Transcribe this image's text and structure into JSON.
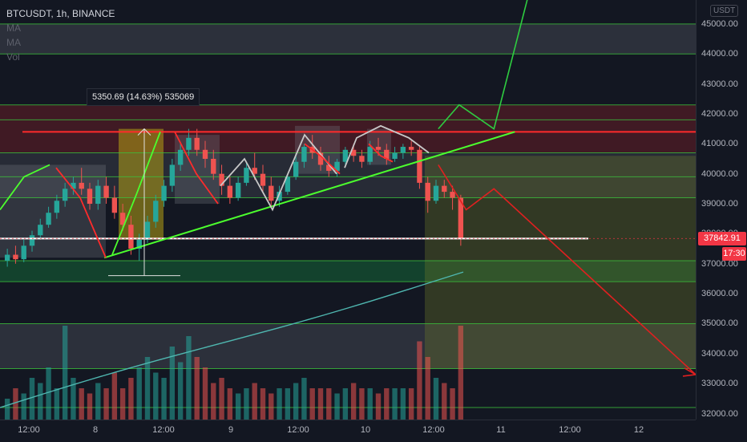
{
  "legend": {
    "symbol": "BTCUSDT, 1h, BINANCE",
    "indicators": [
      "MA",
      "MA",
      "Vol"
    ]
  },
  "price_axis": {
    "currency": "USDT",
    "labels": [
      "45000.00",
      "44000.00",
      "43000.00",
      "42000.00",
      "41000.00",
      "40000.00",
      "39000.00",
      "38000.00",
      "37000.00",
      "36000.00",
      "35000.00",
      "34000.00",
      "33000.00",
      "32000.00"
    ],
    "last_price": "37842.91",
    "countdown": "17:30",
    "last_price_color": "#f23645"
  },
  "time_axis": {
    "labels": [
      "12:00",
      "8",
      "12:00",
      "9",
      "12:00",
      "10",
      "12:00",
      "11",
      "12:00",
      "12"
    ]
  },
  "measure_label": "5350.69 (14.63%) 535069",
  "colors": {
    "up": "#26a69a",
    "down": "#ef5350",
    "red_line": "#ff2b2b",
    "green_line": "#4cff2e",
    "white_line": "#ffffff",
    "ma_line": "#4fb7b0"
  },
  "chart_data": {
    "type": "candlestick",
    "symbol": "BTCUSDT",
    "interval": "1h",
    "exchange": "BINANCE",
    "ylim": [
      31800,
      45800
    ],
    "ohlc_approx": [
      {
        "o": 37100,
        "h": 37500,
        "l": 36900,
        "c": 37300
      },
      {
        "o": 37300,
        "h": 37600,
        "l": 37000,
        "c": 37150
      },
      {
        "o": 37150,
        "h": 37800,
        "l": 37050,
        "c": 37600
      },
      {
        "o": 37600,
        "h": 38100,
        "l": 37400,
        "c": 37950
      },
      {
        "o": 37950,
        "h": 38500,
        "l": 37800,
        "c": 38300
      },
      {
        "o": 38300,
        "h": 38900,
        "l": 38200,
        "c": 38700
      },
      {
        "o": 38700,
        "h": 39300,
        "l": 38500,
        "c": 39100
      },
      {
        "o": 39100,
        "h": 39700,
        "l": 38900,
        "c": 39500
      },
      {
        "o": 39500,
        "h": 39900,
        "l": 39300,
        "c": 39700
      },
      {
        "o": 39700,
        "h": 40200,
        "l": 39300,
        "c": 39500
      },
      {
        "o": 39500,
        "h": 39700,
        "l": 38800,
        "c": 39000
      },
      {
        "o": 39000,
        "h": 39800,
        "l": 38800,
        "c": 39600
      },
      {
        "o": 39600,
        "h": 39900,
        "l": 39000,
        "c": 39200
      },
      {
        "o": 39200,
        "h": 39600,
        "l": 38500,
        "c": 38700
      },
      {
        "o": 38700,
        "h": 39000,
        "l": 38100,
        "c": 38300
      },
      {
        "o": 38300,
        "h": 38600,
        "l": 37300,
        "c": 37500
      },
      {
        "o": 37500,
        "h": 38000,
        "l": 37100,
        "c": 37800
      },
      {
        "o": 37800,
        "h": 38600,
        "l": 37700,
        "c": 38400
      },
      {
        "o": 38400,
        "h": 39300,
        "l": 38200,
        "c": 39100
      },
      {
        "o": 39100,
        "h": 39800,
        "l": 38900,
        "c": 39600
      },
      {
        "o": 39600,
        "h": 40500,
        "l": 39400,
        "c": 40300
      },
      {
        "o": 40300,
        "h": 41000,
        "l": 40100,
        "c": 40800
      },
      {
        "o": 40800,
        "h": 41500,
        "l": 40600,
        "c": 41200
      },
      {
        "o": 41200,
        "h": 41500,
        "l": 40600,
        "c": 40800
      },
      {
        "o": 40800,
        "h": 41100,
        "l": 40200,
        "c": 40500
      },
      {
        "o": 40500,
        "h": 40800,
        "l": 39800,
        "c": 40000
      },
      {
        "o": 40000,
        "h": 40300,
        "l": 39300,
        "c": 39600
      },
      {
        "o": 39600,
        "h": 39900,
        "l": 39000,
        "c": 39200
      },
      {
        "o": 39200,
        "h": 39900,
        "l": 39100,
        "c": 39700
      },
      {
        "o": 39700,
        "h": 40400,
        "l": 39600,
        "c": 40200
      },
      {
        "o": 40200,
        "h": 40700,
        "l": 39800,
        "c": 40000
      },
      {
        "o": 40000,
        "h": 40300,
        "l": 39400,
        "c": 39600
      },
      {
        "o": 39600,
        "h": 39900,
        "l": 38900,
        "c": 39100
      },
      {
        "o": 39100,
        "h": 39600,
        "l": 38900,
        "c": 39400
      },
      {
        "o": 39400,
        "h": 40000,
        "l": 39300,
        "c": 39900
      },
      {
        "o": 39900,
        "h": 40600,
        "l": 39800,
        "c": 40400
      },
      {
        "o": 40400,
        "h": 41000,
        "l": 40200,
        "c": 40900
      },
      {
        "o": 40900,
        "h": 41300,
        "l": 40500,
        "c": 40700
      },
      {
        "o": 40700,
        "h": 40900,
        "l": 40100,
        "c": 40300
      },
      {
        "o": 40300,
        "h": 40600,
        "l": 39900,
        "c": 40100
      },
      {
        "o": 40100,
        "h": 40500,
        "l": 39900,
        "c": 40400
      },
      {
        "o": 40400,
        "h": 40900,
        "l": 40300,
        "c": 40800
      },
      {
        "o": 40800,
        "h": 41000,
        "l": 40400,
        "c": 40600
      },
      {
        "o": 40600,
        "h": 40800,
        "l": 40200,
        "c": 40400
      },
      {
        "o": 40400,
        "h": 41100,
        "l": 40300,
        "c": 40900
      },
      {
        "o": 40900,
        "h": 41200,
        "l": 40600,
        "c": 40800
      },
      {
        "o": 40800,
        "h": 41000,
        "l": 40300,
        "c": 40500
      },
      {
        "o": 40500,
        "h": 40900,
        "l": 40400,
        "c": 40700
      },
      {
        "o": 40700,
        "h": 41000,
        "l": 40500,
        "c": 40900
      },
      {
        "o": 40900,
        "h": 41100,
        "l": 40600,
        "c": 40800
      },
      {
        "o": 40800,
        "h": 40900,
        "l": 39500,
        "c": 39700
      },
      {
        "o": 39700,
        "h": 39900,
        "l": 38700,
        "c": 39100
      },
      {
        "o": 39100,
        "h": 39800,
        "l": 39000,
        "c": 39600
      },
      {
        "o": 39600,
        "h": 39800,
        "l": 39200,
        "c": 39400
      },
      {
        "o": 39400,
        "h": 39600,
        "l": 38800,
        "c": 39200
      },
      {
        "o": 39200,
        "h": 39300,
        "l": 37600,
        "c": 37843
      }
    ],
    "horizontal_levels": {
      "resistance_red": 41400,
      "support_white": 37840,
      "range_lines_green": [
        45000,
        44000,
        42300,
        41800,
        40700,
        39900,
        39200,
        37100,
        36400,
        35000,
        33500,
        32200
      ]
    },
    "ascending_trendline": [
      {
        "x": 0.15,
        "y": 37200
      },
      {
        "x": 0.74,
        "y": 41400
      }
    ],
    "projection_up": [
      {
        "x": 0.63,
        "y": 41500
      },
      {
        "x": 0.66,
        "y": 42300
      },
      {
        "x": 0.71,
        "y": 41500
      },
      {
        "x": 0.76,
        "y": 46000
      }
    ],
    "projection_down": [
      {
        "x": 0.63,
        "y": 40300
      },
      {
        "x": 0.67,
        "y": 38800
      },
      {
        "x": 0.71,
        "y": 39500
      },
      {
        "x": 1.0,
        "y": 33300
      }
    ],
    "volume": [
      0.2,
      0.3,
      0.25,
      0.4,
      0.35,
      0.5,
      0.3,
      0.9,
      0.4,
      0.3,
      0.25,
      0.35,
      0.3,
      0.45,
      0.3,
      0.4,
      0.5,
      0.6,
      0.45,
      0.4,
      0.7,
      0.55,
      0.8,
      0.6,
      0.5,
      0.35,
      0.4,
      0.3,
      0.25,
      0.3,
      0.35,
      0.3,
      0.25,
      0.3,
      0.3,
      0.35,
      0.4,
      0.3,
      0.3,
      0.3,
      0.25,
      0.3,
      0.35,
      0.3,
      0.3,
      0.25,
      0.3,
      0.3,
      0.3,
      0.3,
      0.75,
      0.6,
      0.4,
      0.35,
      0.3,
      0.9
    ]
  }
}
